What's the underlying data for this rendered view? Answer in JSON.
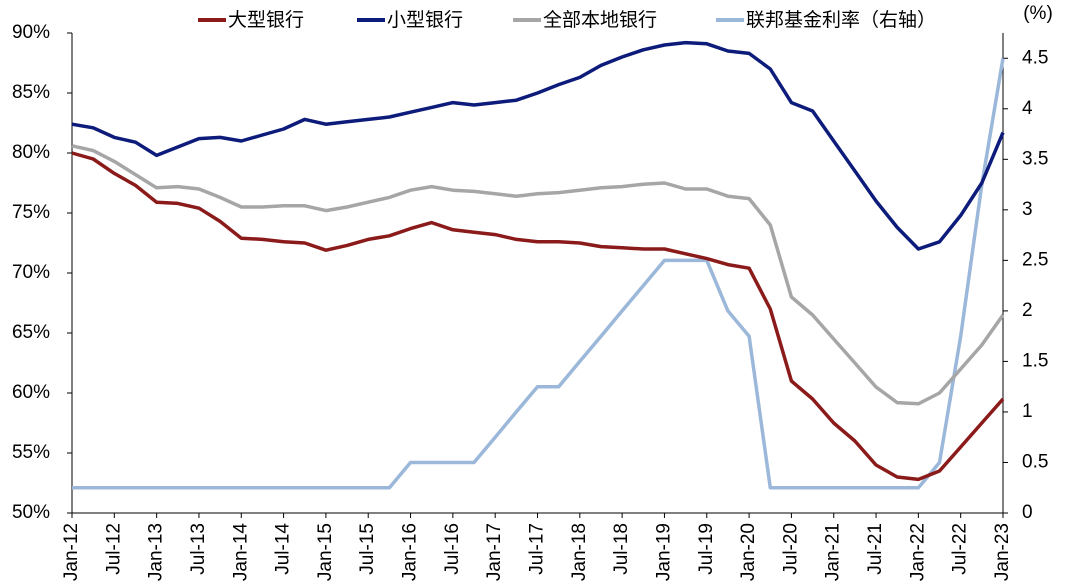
{
  "chart_data": {
    "type": "line",
    "categories": [
      "Jan-12",
      null,
      "Jul-12",
      null,
      "Jan-13",
      null,
      "Jul-13",
      null,
      "Jan-14",
      null,
      "Jul-14",
      null,
      "Jan-15",
      null,
      "Jul-15",
      null,
      "Jan-16",
      null,
      "Jul-16",
      null,
      "Jan-17",
      null,
      "Jul-17",
      null,
      "Jan-18",
      null,
      "Jul-18",
      null,
      "Jan-19",
      null,
      "Jul-19",
      null,
      "Jan-20",
      null,
      "Jul-20",
      null,
      "Jan-21",
      null,
      "Jul-21",
      null,
      "Jan-22",
      null,
      "Jul-22",
      null,
      "Jan-23"
    ],
    "series": [
      {
        "name": "大型银行",
        "color": "#8b1a1a",
        "values": [
          80.0,
          79.5,
          78.3,
          77.3,
          75.9,
          75.8,
          75.4,
          74.3,
          72.9,
          72.8,
          72.6,
          72.5,
          71.9,
          72.3,
          72.8,
          73.1,
          73.7,
          74.2,
          73.6,
          73.4,
          73.2,
          72.8,
          72.6,
          72.6,
          72.5,
          72.2,
          72.1,
          72.0,
          72.0,
          71.6,
          71.2,
          70.7,
          70.4,
          67.0,
          61.0,
          59.5,
          57.5,
          56.0,
          54.0,
          53.0,
          52.8,
          53.5,
          55.5,
          57.5,
          59.5
        ]
      },
      {
        "name": "小型银行",
        "color": "#0d1b7a",
        "values": [
          82.4,
          82.1,
          81.3,
          80.9,
          79.8,
          80.5,
          81.2,
          81.3,
          81.0,
          81.5,
          82.0,
          82.8,
          82.4,
          82.6,
          82.8,
          83.0,
          83.4,
          83.8,
          84.2,
          84.0,
          84.2,
          84.4,
          85.0,
          85.7,
          86.3,
          87.3,
          88.0,
          88.6,
          89.0,
          89.2,
          89.1,
          88.5,
          88.3,
          87.0,
          84.2,
          83.5,
          81.0,
          78.5,
          76.0,
          73.8,
          72.0,
          72.6,
          74.8,
          77.5,
          81.7
        ]
      },
      {
        "name": "全部本地银行",
        "color": "#a6a6a6",
        "values": [
          80.6,
          80.2,
          79.3,
          78.2,
          77.1,
          77.2,
          77.0,
          76.3,
          75.5,
          75.5,
          75.6,
          75.6,
          75.2,
          75.5,
          75.9,
          76.3,
          76.9,
          77.2,
          76.9,
          76.8,
          76.6,
          76.4,
          76.6,
          76.7,
          76.9,
          77.1,
          77.2,
          77.4,
          77.5,
          77.0,
          77.0,
          76.4,
          76.2,
          74.0,
          68.0,
          66.5,
          64.5,
          62.5,
          60.5,
          59.2,
          59.1,
          60.0,
          62.0,
          64.0,
          66.5
        ]
      },
      {
        "name": "联邦基金利率（右轴）",
        "color": "#9bb7d9",
        "axis": "y2",
        "values": [
          0.25,
          0.25,
          0.25,
          0.25,
          0.25,
          0.25,
          0.25,
          0.25,
          0.25,
          0.25,
          0.25,
          0.25,
          0.25,
          0.25,
          0.25,
          0.25,
          0.5,
          0.5,
          0.5,
          0.5,
          0.75,
          1.0,
          1.25,
          1.25,
          1.5,
          1.75,
          2.0,
          2.25,
          2.5,
          2.5,
          2.5,
          2.0,
          1.75,
          0.25,
          0.25,
          0.25,
          0.25,
          0.25,
          0.25,
          0.25,
          0.25,
          0.5,
          1.75,
          3.25,
          4.5
        ]
      }
    ],
    "ylim": [
      50,
      90
    ],
    "yticks": [
      {
        "value": 50,
        "label": "50%"
      },
      {
        "value": 55,
        "label": "55%"
      },
      {
        "value": 60,
        "label": "60%"
      },
      {
        "value": 65,
        "label": "65%"
      },
      {
        "value": 70,
        "label": "70%"
      },
      {
        "value": 75,
        "label": "75%"
      },
      {
        "value": 80,
        "label": "80%"
      },
      {
        "value": 85,
        "label": "85%"
      },
      {
        "value": 90,
        "label": "90%"
      }
    ],
    "y2lim": [
      0,
      4.75
    ],
    "y2ticks": [
      0,
      0.5,
      1,
      1.5,
      2,
      2.5,
      3,
      3.5,
      4,
      4.5
    ],
    "y2_label": "(%)",
    "legend": "top"
  }
}
